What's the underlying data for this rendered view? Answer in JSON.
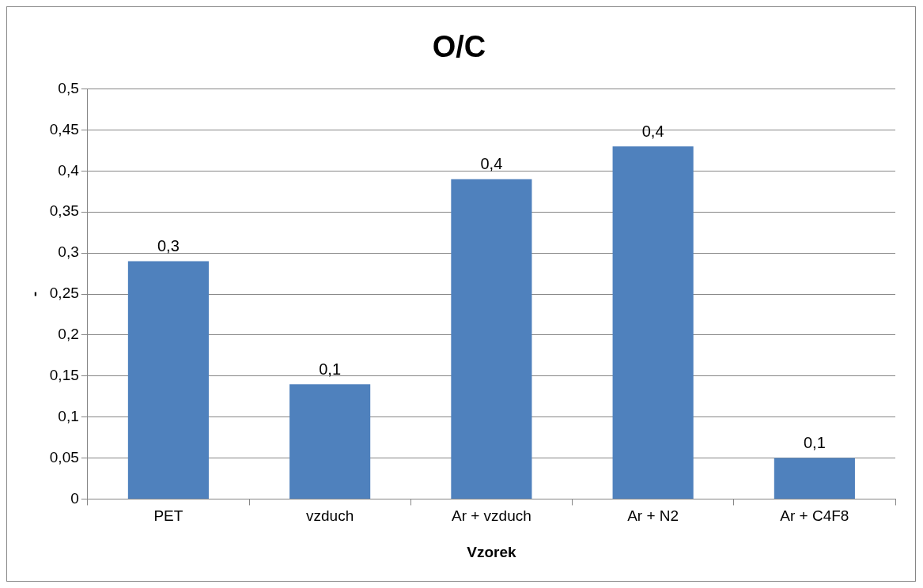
{
  "chart_data": {
    "type": "bar",
    "title": "O/C",
    "xlabel": "Vzorek",
    "ylabel": "-",
    "categories": [
      "PET",
      "vzduch",
      "Ar + vzduch",
      "Ar + N2",
      "Ar + C4F8"
    ],
    "values": [
      0.29,
      0.14,
      0.39,
      0.43,
      0.05
    ],
    "value_labels": [
      "0,3",
      "0,1",
      "0,4",
      "0,4",
      "0,1"
    ],
    "color": "#4f81bd",
    "ylim": [
      0,
      0.5
    ],
    "yticks": [
      {
        "value": 0,
        "label": "0"
      },
      {
        "value": 0.05,
        "label": "0,05"
      },
      {
        "value": 0.1,
        "label": "0,1"
      },
      {
        "value": 0.15,
        "label": "0,15"
      },
      {
        "value": 0.2,
        "label": "0,2"
      },
      {
        "value": 0.25,
        "label": "0,25"
      },
      {
        "value": 0.3,
        "label": "0,3"
      },
      {
        "value": 0.35,
        "label": "0,35"
      },
      {
        "value": 0.4,
        "label": "0,4"
      },
      {
        "value": 0.45,
        "label": "0,45"
      },
      {
        "value": 0.5,
        "label": "0,5"
      }
    ],
    "grid": "y",
    "legend": false
  }
}
